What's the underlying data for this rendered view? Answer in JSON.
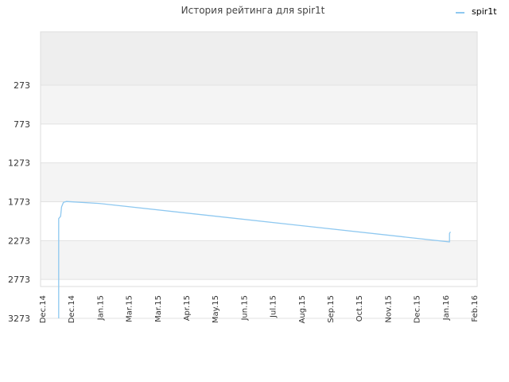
{
  "chart_data": {
    "type": "line",
    "title": "История рейтинга для spir1t",
    "legend": {
      "placement": "top-right"
    },
    "y_axis": {
      "inverted": true,
      "ylim": [
        3273,
        0
      ],
      "ticks": [
        273,
        773,
        1273,
        1773,
        2273,
        2773,
        3273
      ],
      "band_colors": [
        "#eeeeee",
        "#f4f4f4",
        "#ffffff"
      ]
    },
    "x_axis": {
      "ticks": [
        "Dec.14",
        "Dec.14",
        "Jan.15",
        "Mar.15",
        "Mar.15",
        "Apr.15",
        "May.15",
        "Jun.15",
        "Jul.15",
        "Aug.15",
        "Sep.15",
        "Oct.15",
        "Nov.15",
        "Dec.15",
        "Jan.16",
        "Feb.16"
      ],
      "range": [
        "2014-11-01",
        "2016-02-01"
      ]
    },
    "grid": true,
    "series": [
      {
        "name": "spir1t",
        "color": "#8ec8f0",
        "points": [
          [
            "2014-11-20",
            3273
          ],
          [
            "2014-11-20",
            1990
          ],
          [
            "2014-11-22",
            1960
          ],
          [
            "2014-11-23",
            1840
          ],
          [
            "2014-11-25",
            1780
          ],
          [
            "2014-11-28",
            1770
          ],
          [
            "2015-01-01",
            1795
          ],
          [
            "2016-01-03",
            2290
          ],
          [
            "2016-01-03",
            2180
          ],
          [
            "2016-01-04",
            2160
          ]
        ]
      }
    ]
  }
}
